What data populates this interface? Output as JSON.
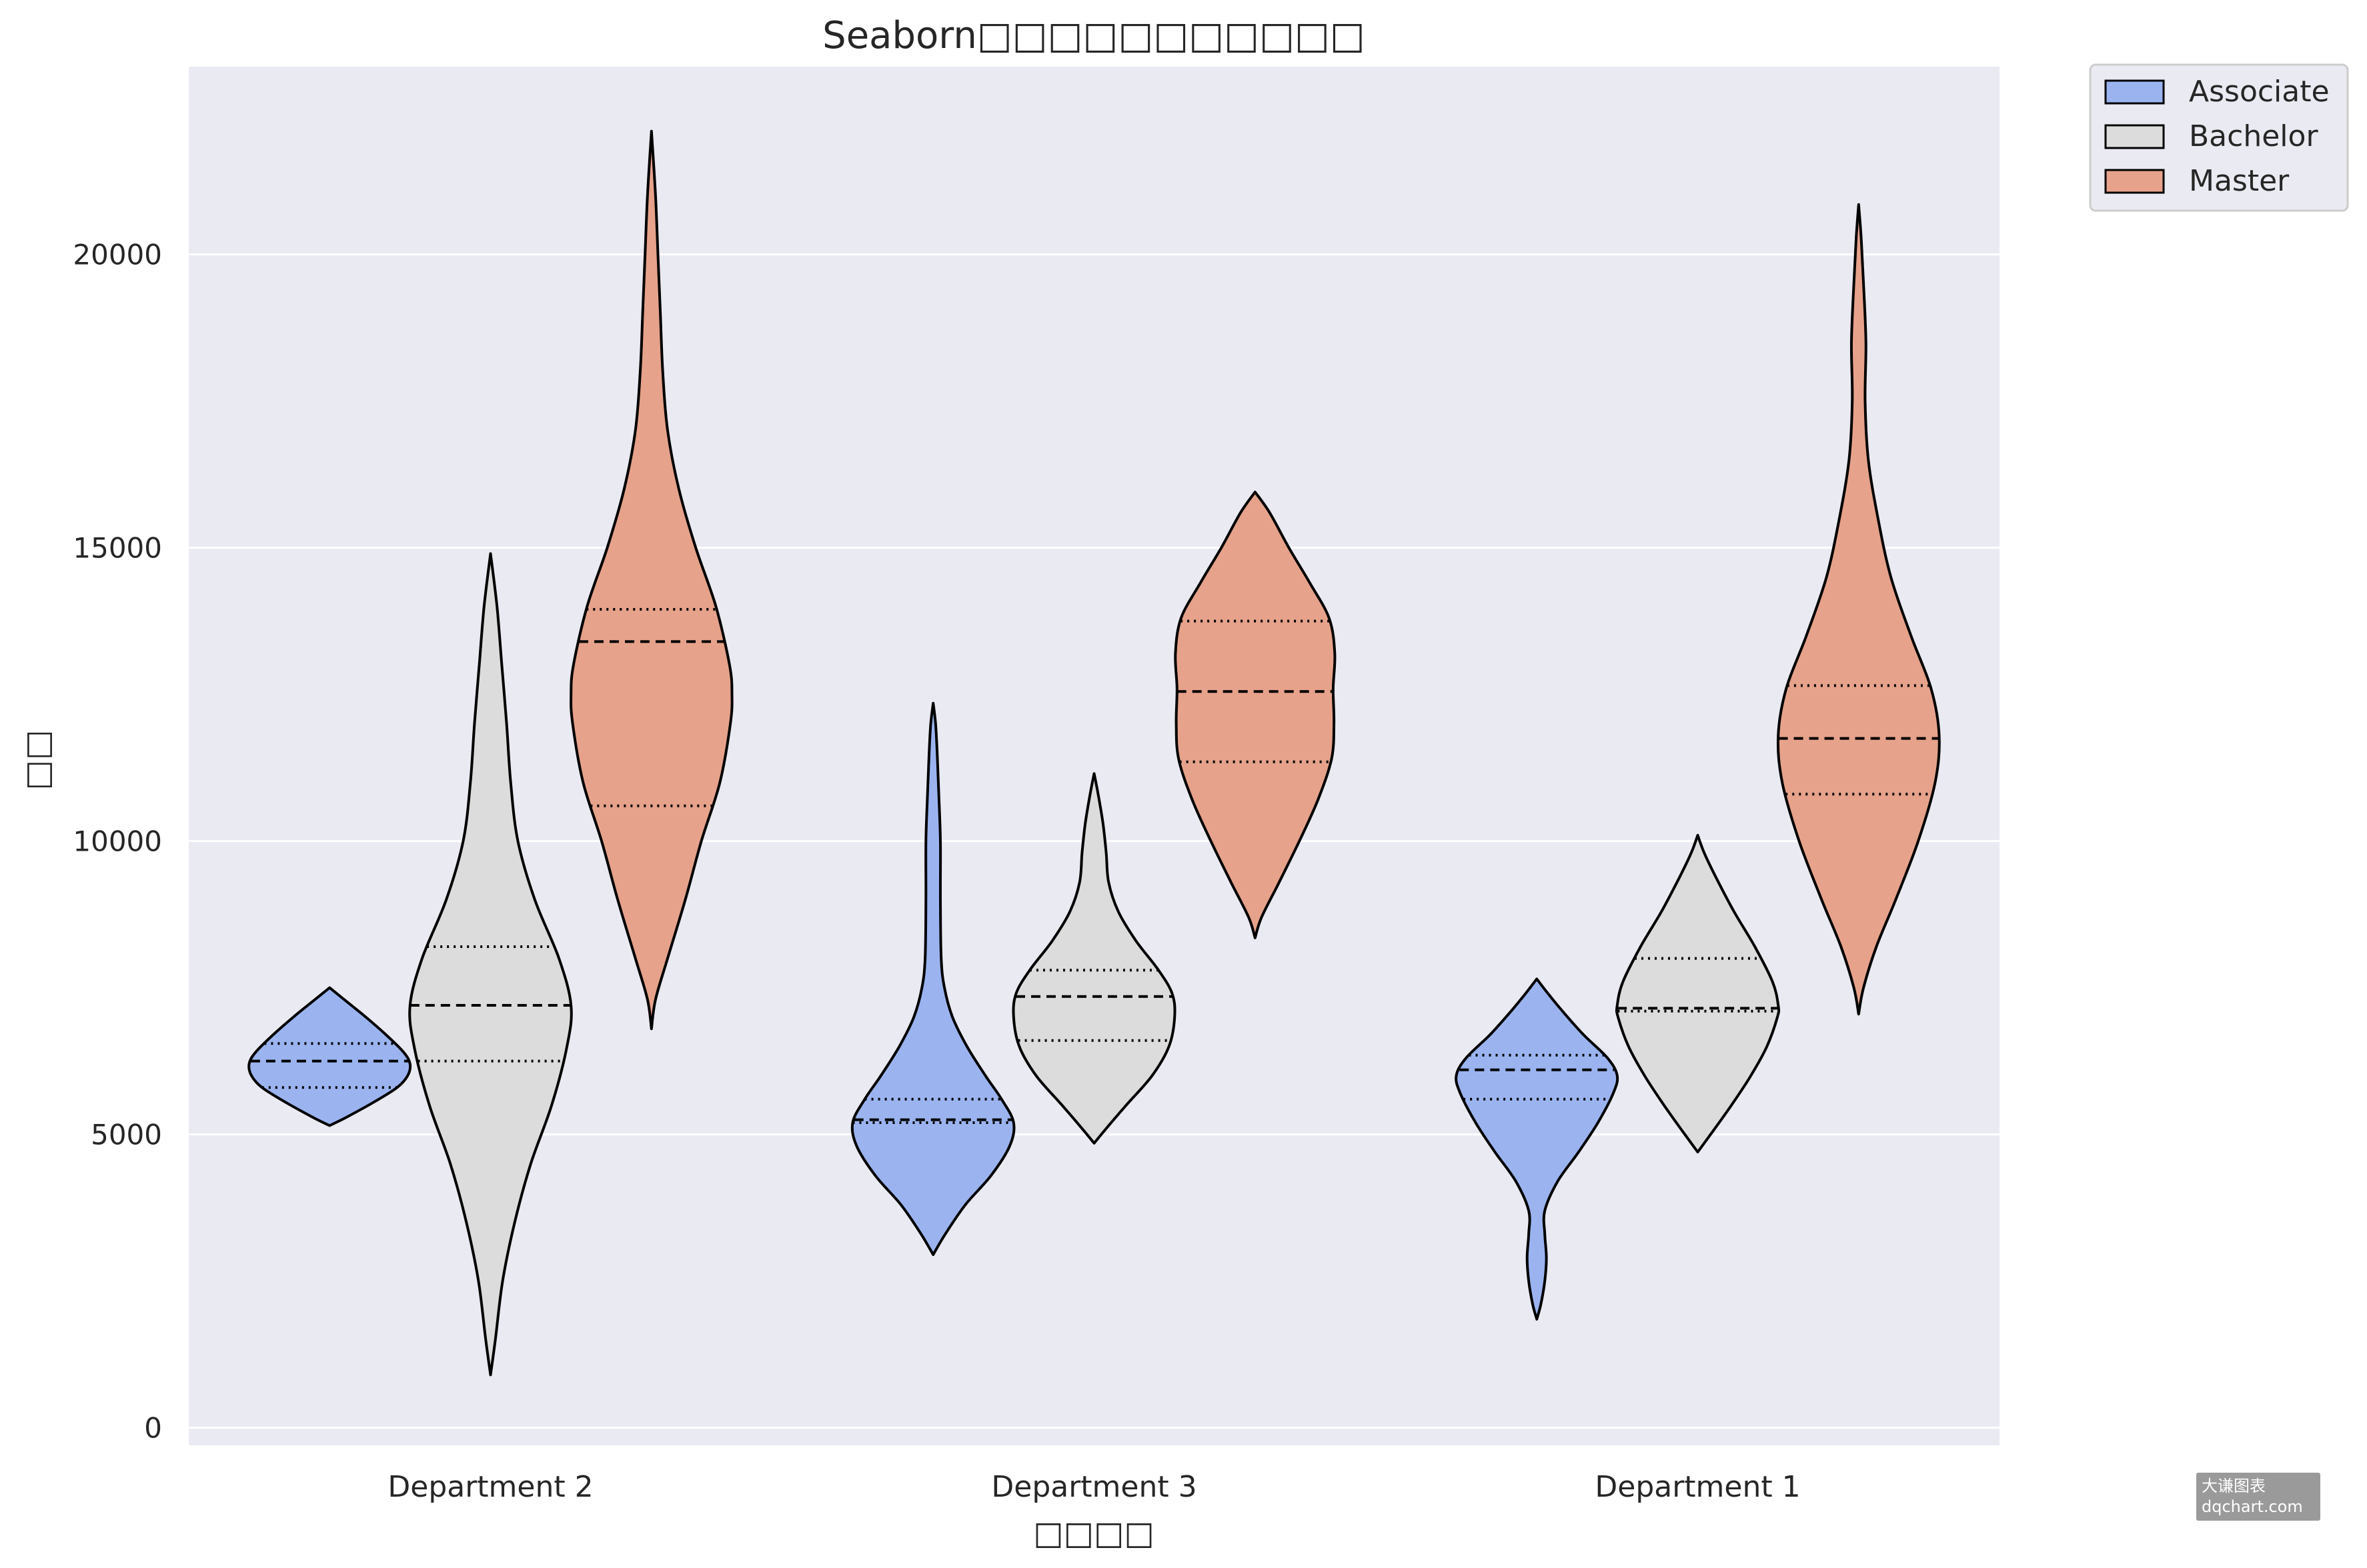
{
  "chart_data": {
    "type": "violin",
    "title": "Seaborn□□□□□□□□□□□",
    "xlabel": "□□□□",
    "ylabel": "□□",
    "categories": [
      "Department 2",
      "Department 3",
      "Department 1"
    ],
    "ylim": [
      -300,
      23200
    ],
    "yticks": [
      0,
      5000,
      10000,
      15000,
      20000
    ],
    "grid": true,
    "legend_position": "outside top-right",
    "inner": "quartile",
    "series": [
      {
        "name": "Associate",
        "color": "#9bb4f0",
        "violins": [
          {
            "category": "Department 2",
            "min": 5150,
            "max": 7500,
            "q1": 5800,
            "median": 6250,
            "q3": 6550,
            "profile": [
              [
                5150,
                0.0
              ],
              [
                5300,
                0.22
              ],
              [
                5550,
                0.55
              ],
              [
                5800,
                0.84
              ],
              [
                6000,
                0.97
              ],
              [
                6200,
                1.0
              ],
              [
                6400,
                0.92
              ],
              [
                6700,
                0.7
              ],
              [
                7000,
                0.45
              ],
              [
                7300,
                0.18
              ],
              [
                7500,
                0.0
              ]
            ]
          },
          {
            "category": "Department 3",
            "min": 2950,
            "max": 12350,
            "q1": 5200,
            "median": 5250,
            "q3": 5600,
            "profile": [
              [
                2950,
                0.0
              ],
              [
                3300,
                0.15
              ],
              [
                3800,
                0.4
              ],
              [
                4300,
                0.72
              ],
              [
                4800,
                0.95
              ],
              [
                5200,
                1.0
              ],
              [
                5600,
                0.85
              ],
              [
                6000,
                0.65
              ],
              [
                6500,
                0.42
              ],
              [
                7000,
                0.24
              ],
              [
                7500,
                0.14
              ],
              [
                8000,
                0.1
              ],
              [
                9000,
                0.09
              ],
              [
                10000,
                0.09
              ],
              [
                10800,
                0.07
              ],
              [
                11500,
                0.05
              ],
              [
                12000,
                0.03
              ],
              [
                12350,
                0.0
              ]
            ]
          },
          {
            "category": "Department 1",
            "min": 1850,
            "max": 7650,
            "q1": 5600,
            "median": 6100,
            "q3": 6350,
            "profile": [
              [
                1850,
                0.0
              ],
              [
                2100,
                0.05
              ],
              [
                2500,
                0.1
              ],
              [
                2900,
                0.12
              ],
              [
                3300,
                0.1
              ],
              [
                3700,
                0.1
              ],
              [
                4200,
                0.26
              ],
              [
                4700,
                0.52
              ],
              [
                5200,
                0.76
              ],
              [
                5700,
                0.95
              ],
              [
                6000,
                1.0
              ],
              [
                6300,
                0.88
              ],
              [
                6700,
                0.58
              ],
              [
                7100,
                0.32
              ],
              [
                7400,
                0.14
              ],
              [
                7650,
                0.0
              ]
            ]
          }
        ]
      },
      {
        "name": "Bachelor",
        "color": "#dcdcdc",
        "violins": [
          {
            "category": "Department 2",
            "min": 900,
            "max": 14900,
            "q1": 6250,
            "median": 7200,
            "q3": 8200,
            "profile": [
              [
                900,
                0.0
              ],
              [
                1500,
                0.06
              ],
              [
                2500,
                0.15
              ],
              [
                3500,
                0.3
              ],
              [
                4500,
                0.5
              ],
              [
                5500,
                0.76
              ],
              [
                6500,
                0.95
              ],
              [
                7200,
                1.0
              ],
              [
                8000,
                0.85
              ],
              [
                9000,
                0.55
              ],
              [
                10000,
                0.34
              ],
              [
                11000,
                0.25
              ],
              [
                12000,
                0.2
              ],
              [
                13000,
                0.14
              ],
              [
                14000,
                0.08
              ],
              [
                14900,
                0.0
              ]
            ]
          },
          {
            "category": "Department 3",
            "min": 4850,
            "max": 11150,
            "q1": 6600,
            "median": 7350,
            "q3": 7800,
            "profile": [
              [
                4850,
                0.0
              ],
              [
                5100,
                0.15
              ],
              [
                5500,
                0.4
              ],
              [
                6000,
                0.72
              ],
              [
                6500,
                0.93
              ],
              [
                7000,
                1.0
              ],
              [
                7400,
                0.97
              ],
              [
                7800,
                0.8
              ],
              [
                8300,
                0.52
              ],
              [
                8800,
                0.3
              ],
              [
                9300,
                0.18
              ],
              [
                9800,
                0.15
              ],
              [
                10300,
                0.11
              ],
              [
                10800,
                0.05
              ],
              [
                11150,
                0.0
              ]
            ]
          },
          {
            "category": "Department 1",
            "min": 4700,
            "max": 10100,
            "q1": 7100,
            "median": 7150,
            "q3": 8000,
            "profile": [
              [
                4700,
                0.0
              ],
              [
                5000,
                0.16
              ],
              [
                5500,
                0.42
              ],
              [
                6000,
                0.66
              ],
              [
                6500,
                0.86
              ],
              [
                7000,
                0.99
              ],
              [
                7200,
                1.0
              ],
              [
                7600,
                0.93
              ],
              [
                8200,
                0.71
              ],
              [
                8800,
                0.45
              ],
              [
                9400,
                0.22
              ],
              [
                9800,
                0.08
              ],
              [
                10100,
                0.0
              ]
            ]
          }
        ]
      },
      {
        "name": "Master",
        "color": "#e6a28b",
        "violins": [
          {
            "category": "Department 2",
            "min": 6800,
            "max": 22100,
            "q1": 10600,
            "median": 13400,
            "q3": 13950,
            "profile": [
              [
                6800,
                0.0
              ],
              [
                7300,
                0.05
              ],
              [
                8000,
                0.2
              ],
              [
                9000,
                0.42
              ],
              [
                10000,
                0.62
              ],
              [
                11000,
                0.85
              ],
              [
                12000,
                0.98
              ],
              [
                12500,
                1.0
              ],
              [
                13000,
                0.97
              ],
              [
                14000,
                0.8
              ],
              [
                15000,
                0.55
              ],
              [
                16000,
                0.34
              ],
              [
                17000,
                0.2
              ],
              [
                18000,
                0.14
              ],
              [
                19000,
                0.11
              ],
              [
                20000,
                0.08
              ],
              [
                21000,
                0.05
              ],
              [
                22100,
                0.0
              ]
            ]
          },
          {
            "category": "Department 3",
            "min": 8350,
            "max": 15950,
            "q1": 11350,
            "median": 12550,
            "q3": 13750,
            "profile": [
              [
                8350,
                0.0
              ],
              [
                8700,
                0.08
              ],
              [
                9300,
                0.3
              ],
              [
                10000,
                0.55
              ],
              [
                10700,
                0.78
              ],
              [
                11400,
                0.95
              ],
              [
                12000,
                0.98
              ],
              [
                12600,
                0.97
              ],
              [
                13200,
                0.99
              ],
              [
                13800,
                0.92
              ],
              [
                14400,
                0.68
              ],
              [
                15000,
                0.42
              ],
              [
                15600,
                0.18
              ],
              [
                15950,
                0.0
              ]
            ]
          },
          {
            "category": "Department 1",
            "min": 7050,
            "max": 20850,
            "q1": 10800,
            "median": 11750,
            "q3": 12650,
            "profile": [
              [
                7050,
                0.0
              ],
              [
                7500,
                0.06
              ],
              [
                8200,
                0.22
              ],
              [
                9000,
                0.46
              ],
              [
                10000,
                0.74
              ],
              [
                11000,
                0.95
              ],
              [
                11800,
                1.0
              ],
              [
                12600,
                0.9
              ],
              [
                13500,
                0.65
              ],
              [
                14500,
                0.4
              ],
              [
                15500,
                0.24
              ],
              [
                16500,
                0.12
              ],
              [
                17500,
                0.08
              ],
              [
                18500,
                0.09
              ],
              [
                19500,
                0.06
              ],
              [
                20300,
                0.03
              ],
              [
                20850,
                0.0
              ]
            ]
          }
        ]
      }
    ]
  },
  "watermark": {
    "line1": "大谦图表",
    "line2": "dqchart.com"
  }
}
